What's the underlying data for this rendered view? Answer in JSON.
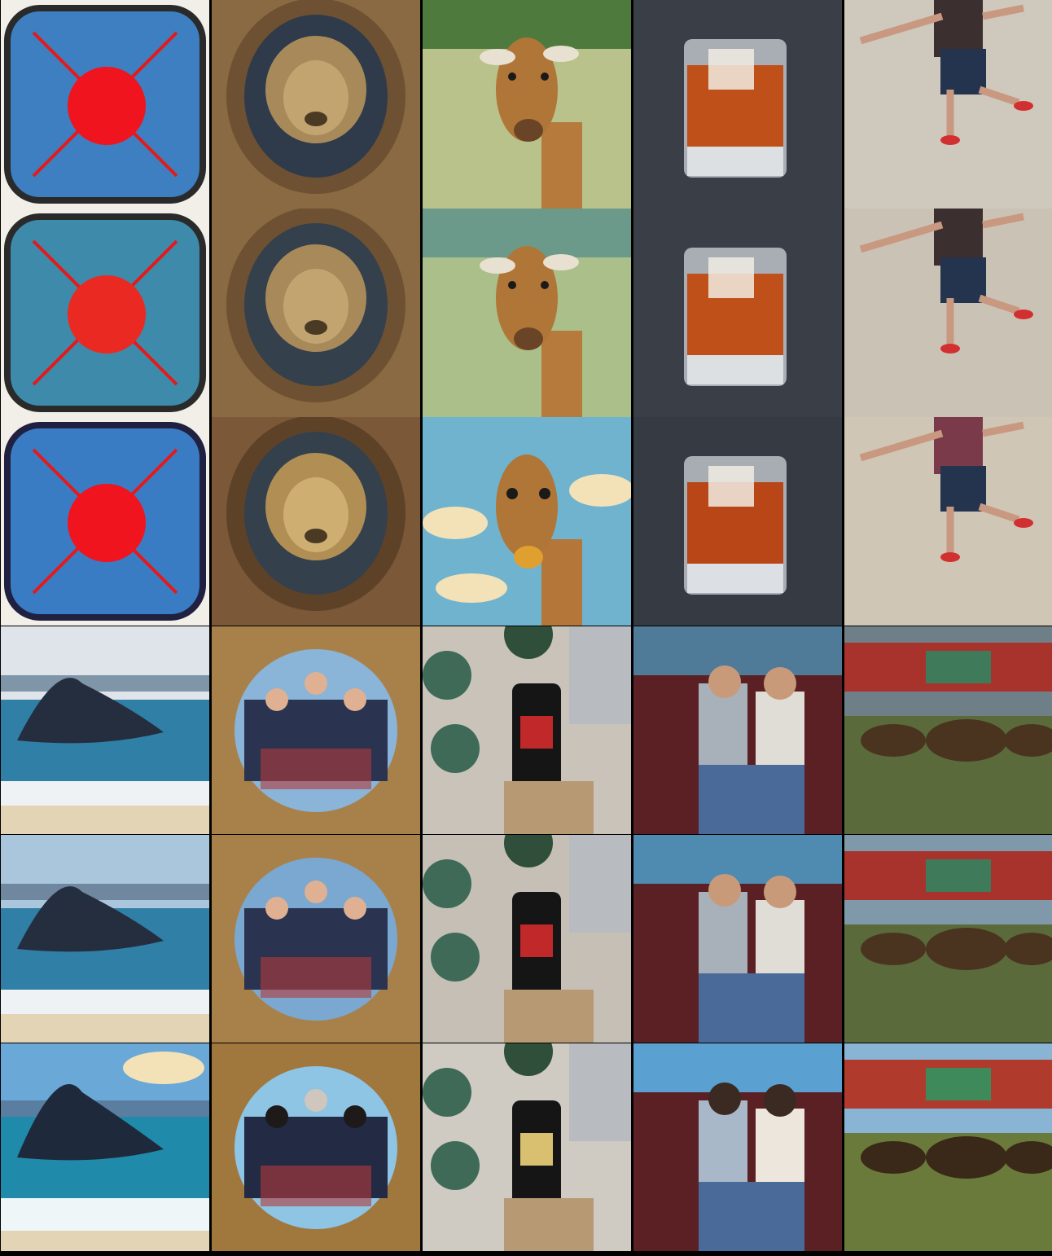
{
  "grid": {
    "rows": 6,
    "cols": 5,
    "tiles": [
      [
        "target-emblem",
        "lion-relief",
        "giraffe",
        "iced-drink",
        "jumping-boy"
      ],
      [
        "target-emblem",
        "lion-relief",
        "giraffe",
        "iced-drink",
        "jumping-boy"
      ],
      [
        "target-emblem",
        "lion-relief",
        "giraffe-cartoon",
        "iced-drink",
        "jumping-boy"
      ],
      [
        "whale",
        "family-portrait",
        "phone-desk",
        "couple-truck",
        "bison-kremlin"
      ],
      [
        "whale",
        "family-portrait",
        "phone-desk",
        "couple-truck",
        "bison-kremlin"
      ],
      [
        "whale-anime",
        "family-portrait-anime",
        "phone-desk",
        "couple-truck-anime",
        "bison-kremlin"
      ]
    ]
  },
  "colors": {
    "emblem_blue": "#3d7fc0",
    "emblem_red": "#f0141e",
    "bronze": "#9a7a4a",
    "sky": "#8fb8d8",
    "sea": "#2f7fa6",
    "drink": "#c0501a",
    "wall": "#cfc8bc"
  }
}
